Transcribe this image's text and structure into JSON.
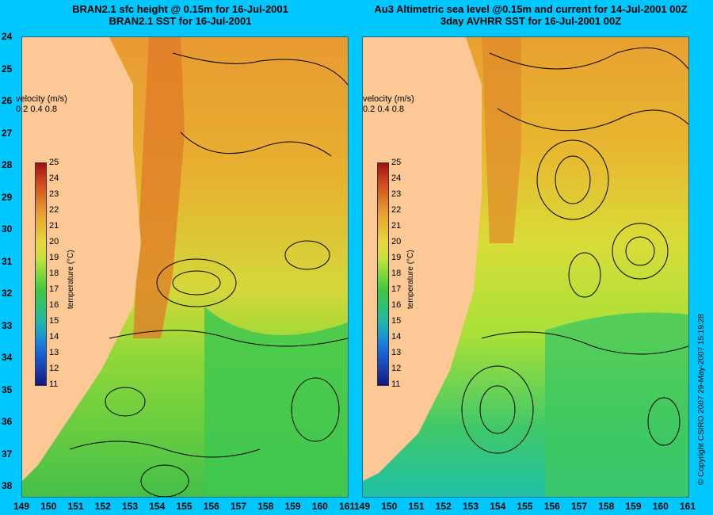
{
  "titles": {
    "left_line1": "BRAN2.1 sfc height @ 0.15m for 16-Jul-2001",
    "left_line2": "BRAN2.1 SST for 16-Jul-2001",
    "right_line1": "Au3 Altimetric sea level  @0.15m and current for 14-Jul-2001 00Z",
    "right_line2": "3day AVHRR SST for 16-Jul-2001 00Z"
  },
  "y_axis": {
    "labels": [
      "24",
      "25",
      "26",
      "27",
      "28",
      "29",
      "30",
      "31",
      "32",
      "33",
      "34",
      "35",
      "36",
      "37",
      "38"
    ]
  },
  "x_axis": {
    "labels": [
      "149",
      "150",
      "151",
      "152",
      "153",
      "154",
      "155",
      "156",
      "157",
      "158",
      "159",
      "160",
      "161"
    ]
  },
  "velocity_legend": {
    "title": "velocity (m/s)",
    "scale": "0.2 0.4 0.8"
  },
  "colorbar": {
    "title": "temperature (°C)",
    "ticks": [
      "25",
      "24",
      "23",
      "22",
      "21",
      "20",
      "19",
      "18",
      "17",
      "16",
      "15",
      "14",
      "13",
      "12",
      "11"
    ]
  },
  "copyright": "© Copyright CSIRO 2007   29-May-2007 15:19:28",
  "colors": {
    "background": "#00c8ff",
    "land": "#fcc896",
    "warm": "#e88a28",
    "mid": "#e0d030",
    "cool": "#44c840",
    "cold": "#20c0a0"
  }
}
